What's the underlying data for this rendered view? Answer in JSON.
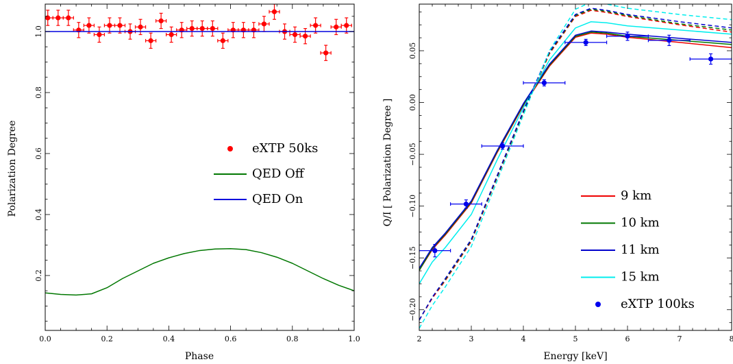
{
  "chart_data": [
    {
      "type": "line",
      "xlabel": "Phase",
      "ylabel": "Polarization Degree",
      "xlim": [
        0.0,
        1.0
      ],
      "ylim": [
        0.02,
        1.09
      ],
      "xticks": [
        0.0,
        0.2,
        0.4,
        0.6,
        0.8,
        1.0
      ],
      "xtick_labels": [
        "0.0",
        "0.2",
        "0.4",
        "0.6",
        "0.8",
        "1.0"
      ],
      "yticks": [
        0.2,
        0.4,
        0.6,
        0.8,
        1.0
      ],
      "ytick_labels": [
        "0.2",
        "0.4",
        "0.6",
        "0.8",
        "1.0"
      ],
      "legend_position": "center-right",
      "colors": {
        "eXTP 50ks": "#ff0000",
        "QED Off": "#007700",
        "QED On": "#0000dd"
      },
      "series": [
        {
          "name": "eXTP 50ks",
          "kind": "errorbar",
          "xerr": 0.0167,
          "x": [
            0.0083,
            0.0417,
            0.075,
            0.1083,
            0.1417,
            0.175,
            0.2083,
            0.2417,
            0.275,
            0.3083,
            0.3417,
            0.375,
            0.4083,
            0.4417,
            0.475,
            0.5083,
            0.5417,
            0.575,
            0.6083,
            0.6417,
            0.675,
            0.7083,
            0.7417,
            0.775,
            0.8083,
            0.8417,
            0.875,
            0.9083,
            0.9417,
            0.975
          ],
          "y": [
            1.045,
            1.045,
            1.045,
            1.005,
            1.02,
            0.99,
            1.02,
            1.02,
            1.0,
            1.015,
            0.97,
            1.035,
            0.99,
            1.005,
            1.01,
            1.01,
            1.01,
            0.97,
            1.005,
            1.005,
            1.005,
            1.025,
            1.065,
            1.0,
            0.99,
            0.985,
            1.02,
            0.93,
            1.015,
            1.02
          ],
          "yerr": 0.025
        },
        {
          "name": "QED Off",
          "kind": "line",
          "x": [
            0.0,
            0.05,
            0.1,
            0.15,
            0.2,
            0.25,
            0.3,
            0.35,
            0.4,
            0.45,
            0.5,
            0.55,
            0.6,
            0.65,
            0.7,
            0.75,
            0.8,
            0.85,
            0.9,
            0.95,
            1.0
          ],
          "y": [
            0.143,
            0.138,
            0.136,
            0.14,
            0.16,
            0.19,
            0.215,
            0.24,
            0.258,
            0.272,
            0.282,
            0.287,
            0.288,
            0.285,
            0.275,
            0.26,
            0.24,
            0.215,
            0.19,
            0.168,
            0.15
          ]
        },
        {
          "name": "QED On",
          "kind": "line",
          "x": [
            0.0,
            1.0
          ],
          "y": [
            1.0,
            1.0
          ]
        }
      ]
    },
    {
      "type": "line",
      "xlabel": "Energy [keV]",
      "ylabel": "Q/I [ Polarization Degree ]",
      "xlim": [
        2.0,
        8.0
      ],
      "ylim": [
        -0.22,
        0.095
      ],
      "xticks": [
        2,
        3,
        4,
        5,
        6,
        7,
        8
      ],
      "xtick_labels": [
        "2",
        "3",
        "4",
        "5",
        "6",
        "7",
        "8"
      ],
      "yticks": [
        -0.2,
        -0.15,
        -0.1,
        -0.05,
        0.0,
        0.05
      ],
      "ytick_labels": [
        "−0.20",
        "−0.15",
        "−0.10",
        "−0.05",
        "0.00",
        "0.05"
      ],
      "legend_position": "lower-right",
      "colors": {
        "9 km": "#ee0000",
        "10 km": "#007700",
        "11 km": "#0000cc",
        "15 km": "#00eeee",
        "eXTP 100ks": "#0000ee"
      },
      "x": [
        2.0,
        2.25,
        2.5,
        3.0,
        3.5,
        4.0,
        4.5,
        5.0,
        5.3,
        5.6,
        6.0,
        7.0,
        8.0
      ],
      "series": [
        {
          "name": "9 km",
          "style": "solid",
          "y": [
            -0.162,
            -0.142,
            -0.128,
            -0.097,
            -0.048,
            -0.003,
            0.035,
            0.063,
            0.067,
            0.066,
            0.063,
            0.058,
            0.053
          ]
        },
        {
          "name": "10 km",
          "style": "solid",
          "y": [
            -0.162,
            -0.141,
            -0.127,
            -0.096,
            -0.047,
            -0.002,
            0.036,
            0.064,
            0.068,
            0.067,
            0.064,
            0.06,
            0.056
          ]
        },
        {
          "name": "11 km",
          "style": "solid",
          "y": [
            -0.16,
            -0.14,
            -0.126,
            -0.095,
            -0.046,
            -0.001,
            0.037,
            0.065,
            0.069,
            0.068,
            0.066,
            0.062,
            0.058
          ]
        },
        {
          "name": "15 km",
          "style": "solid",
          "y": [
            -0.175,
            -0.154,
            -0.14,
            -0.108,
            -0.055,
            -0.005,
            0.041,
            0.072,
            0.078,
            0.077,
            0.074,
            0.07,
            0.066
          ]
        },
        {
          "name": "",
          "legend": false,
          "color": "#ee0000",
          "style": "dashed",
          "y": [
            -0.21,
            -0.189,
            -0.172,
            -0.134,
            -0.072,
            -0.01,
            0.047,
            0.083,
            0.089,
            0.087,
            0.083,
            0.075,
            0.068
          ]
        },
        {
          "name": "",
          "legend": false,
          "color": "#007700",
          "style": "dashed",
          "y": [
            -0.21,
            -0.188,
            -0.171,
            -0.133,
            -0.071,
            -0.009,
            0.048,
            0.084,
            0.09,
            0.088,
            0.084,
            0.076,
            0.07
          ]
        },
        {
          "name": "",
          "legend": false,
          "color": "#0000cc",
          "style": "dashed",
          "y": [
            -0.21,
            -0.188,
            -0.17,
            -0.132,
            -0.07,
            -0.008,
            0.049,
            0.085,
            0.091,
            0.089,
            0.085,
            0.078,
            0.072
          ]
        },
        {
          "name": "",
          "legend": false,
          "color": "#00eeee",
          "style": "dashed",
          "y": [
            -0.218,
            -0.196,
            -0.178,
            -0.139,
            -0.075,
            -0.012,
            0.05,
            0.09,
            0.097,
            0.095,
            0.091,
            0.085,
            0.08
          ]
        },
        {
          "name": "eXTP 100ks",
          "kind": "errorbar",
          "x": [
            2.3,
            2.9,
            3.6,
            4.4,
            5.2,
            6.0,
            6.8,
            7.6
          ],
          "xerr": [
            0.3,
            0.3,
            0.4,
            0.4,
            0.4,
            0.4,
            0.4,
            0.4
          ],
          "y": [
            -0.143,
            -0.098,
            -0.042,
            0.019,
            0.058,
            0.064,
            0.06,
            0.042
          ],
          "yerr": [
            0.006,
            0.004,
            0.003,
            0.003,
            0.003,
            0.004,
            0.005,
            0.005
          ]
        }
      ]
    }
  ]
}
